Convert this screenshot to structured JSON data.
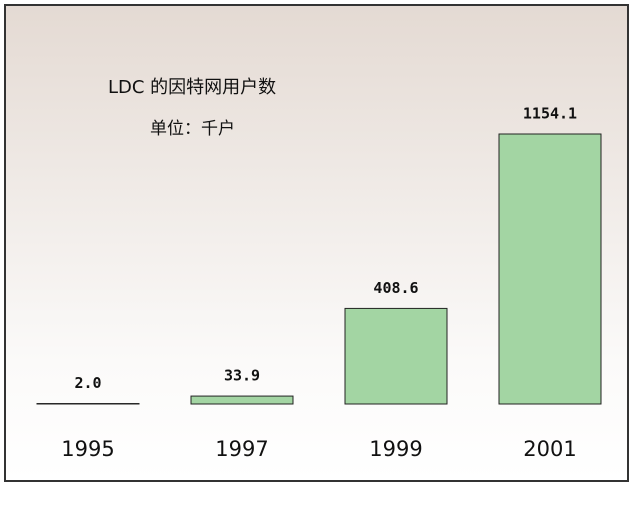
{
  "chart_data": {
    "type": "bar",
    "title": "LDC 的因特网用户数",
    "subtitle": "单位：千户",
    "categories": [
      "1995",
      "1997",
      "1999",
      "2001"
    ],
    "values": [
      2.0,
      33.9,
      408.6,
      1154.1
    ],
    "value_labels": [
      "2.0",
      "33.9",
      "408.6",
      "1154.1"
    ],
    "color": "#a3d5a3"
  }
}
